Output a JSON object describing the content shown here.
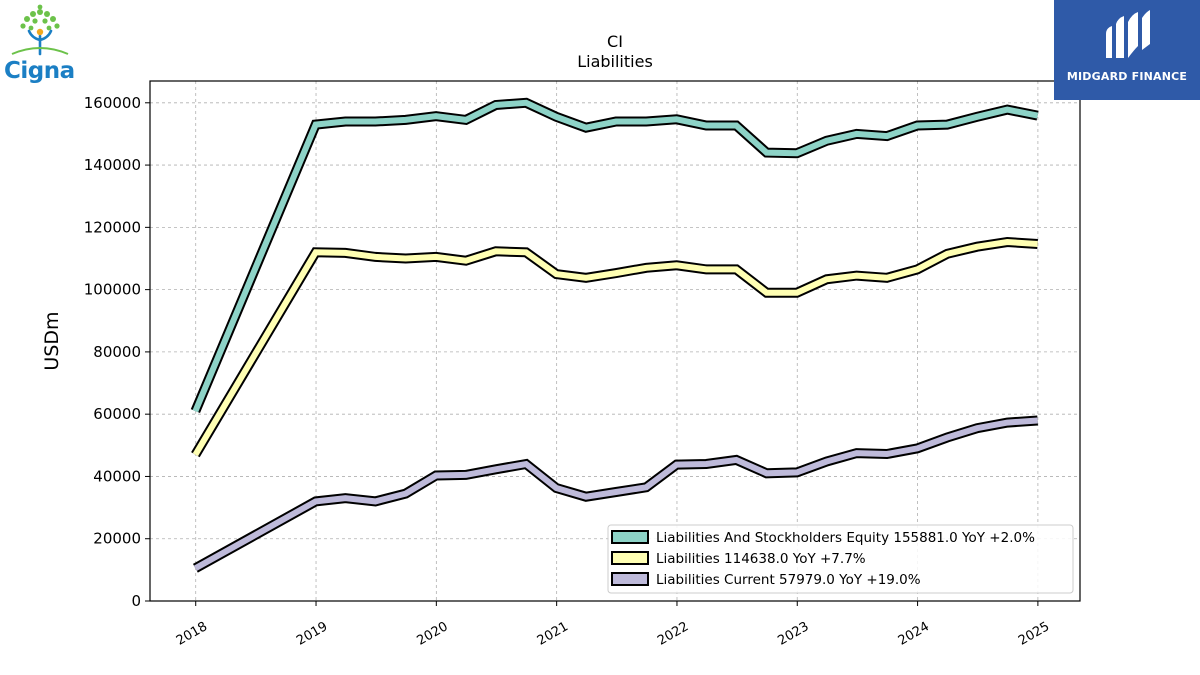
{
  "logos": {
    "left_brand": "Cigna",
    "right_brand": "MIDGARD FINANCE"
  },
  "chart_data": {
    "type": "line",
    "title": "CI",
    "subtitle": "Liabilities",
    "xlabel": "",
    "ylabel": "USDm",
    "ylim": [
      0,
      167000
    ],
    "xlim": [
      2017.62,
      2025.35
    ],
    "yticks": [
      0,
      20000,
      40000,
      60000,
      80000,
      100000,
      120000,
      140000,
      160000
    ],
    "xticks": [
      "2018",
      "2019",
      "2020",
      "2021",
      "2022",
      "2023",
      "2024",
      "2025"
    ],
    "grid": true,
    "legend_position": "lower-right",
    "x": [
      "2017-12-31",
      "2018-12-31",
      "2019-03-31",
      "2019-06-30",
      "2019-09-30",
      "2019-12-31",
      "2020-03-31",
      "2020-06-30",
      "2020-09-30",
      "2020-12-31",
      "2021-03-31",
      "2021-06-30",
      "2021-09-30",
      "2021-12-31",
      "2022-03-31",
      "2022-06-30",
      "2022-09-30",
      "2022-12-31",
      "2023-03-31",
      "2023-06-30",
      "2023-09-30",
      "2023-12-31",
      "2024-03-31",
      "2024-06-30",
      "2024-09-30",
      "2024-12-31"
    ],
    "series": [
      {
        "name": "Liabilities And Stockholders Equity",
        "legend": "Liabilities And Stockholders Equity  155881.0 YoY +2.0%",
        "color": "#8dd3c7",
        "values": [
          61000,
          153000,
          154000,
          154000,
          154500,
          155700,
          154500,
          159300,
          160000,
          155500,
          152000,
          154000,
          154000,
          154700,
          152700,
          152700,
          144000,
          143800,
          147800,
          150000,
          149300,
          152700,
          153000,
          155500,
          157800,
          155881
        ]
      },
      {
        "name": "Liabilities",
        "legend": "Liabilities  114638.0 YoY +7.7%",
        "color": "#ffffb3",
        "values": [
          47000,
          112000,
          111800,
          110500,
          110000,
          110500,
          109300,
          112300,
          112000,
          105000,
          103800,
          105300,
          107000,
          107800,
          106500,
          106500,
          99000,
          99000,
          103300,
          104500,
          103800,
          106500,
          111500,
          113800,
          115300,
          114638
        ]
      },
      {
        "name": "Liabilities Current",
        "legend": "Liabilities Current  57979.0 YoY +19.0%",
        "color": "#bebada",
        "values": [
          10500,
          32000,
          33000,
          32000,
          34500,
          40300,
          40500,
          42300,
          44000,
          36300,
          33500,
          35000,
          36500,
          43800,
          44000,
          45300,
          41000,
          41300,
          44800,
          47500,
          47200,
          49000,
          52500,
          55500,
          57300,
          57979
        ]
      }
    ]
  }
}
